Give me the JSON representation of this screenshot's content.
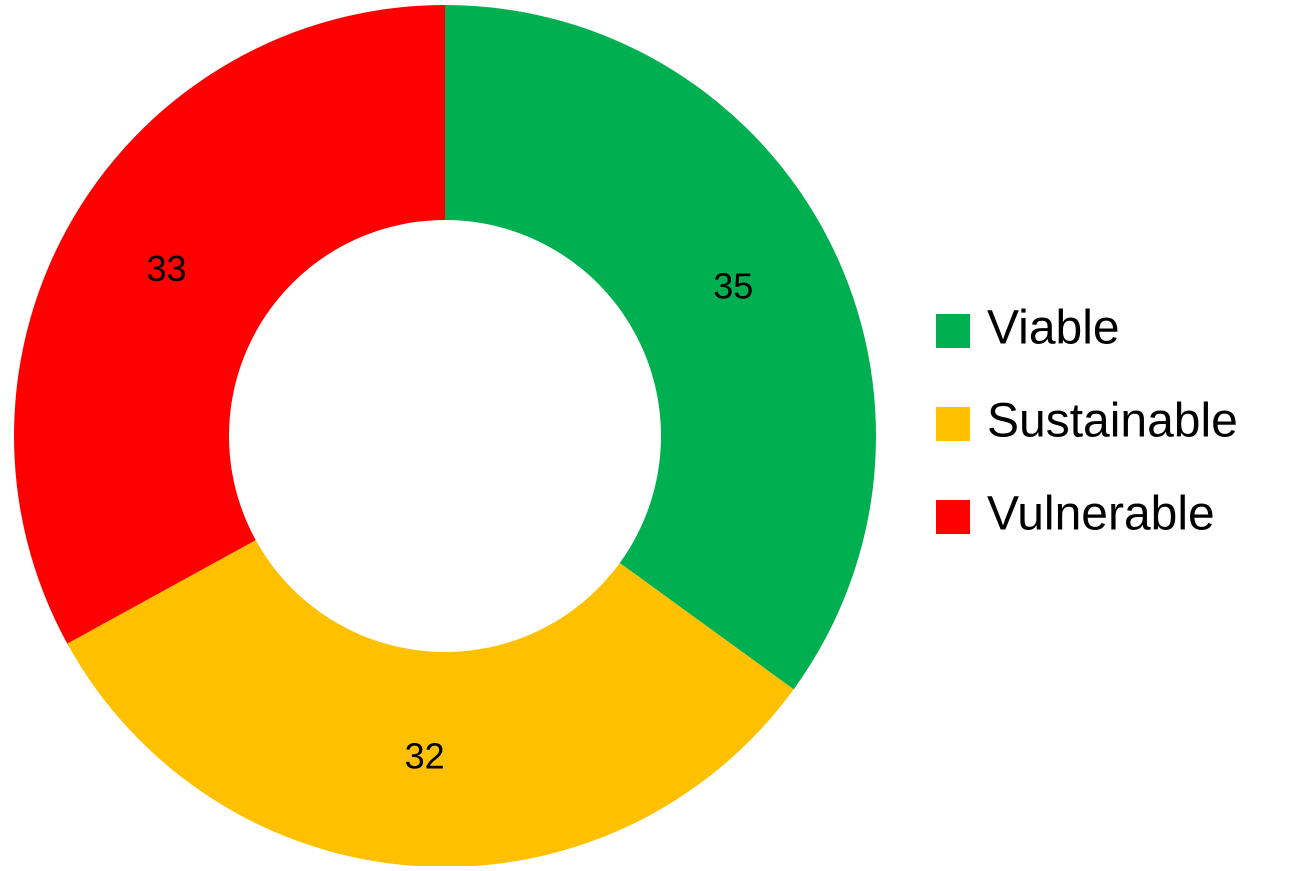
{
  "chart_data": {
    "type": "donut",
    "categories": [
      "Viable",
      "Sustainable",
      "Vulnerable"
    ],
    "values": [
      35,
      32,
      33
    ],
    "colors": [
      "#00b050",
      "#ffc000",
      "#ff0000"
    ],
    "legend": "right"
  }
}
